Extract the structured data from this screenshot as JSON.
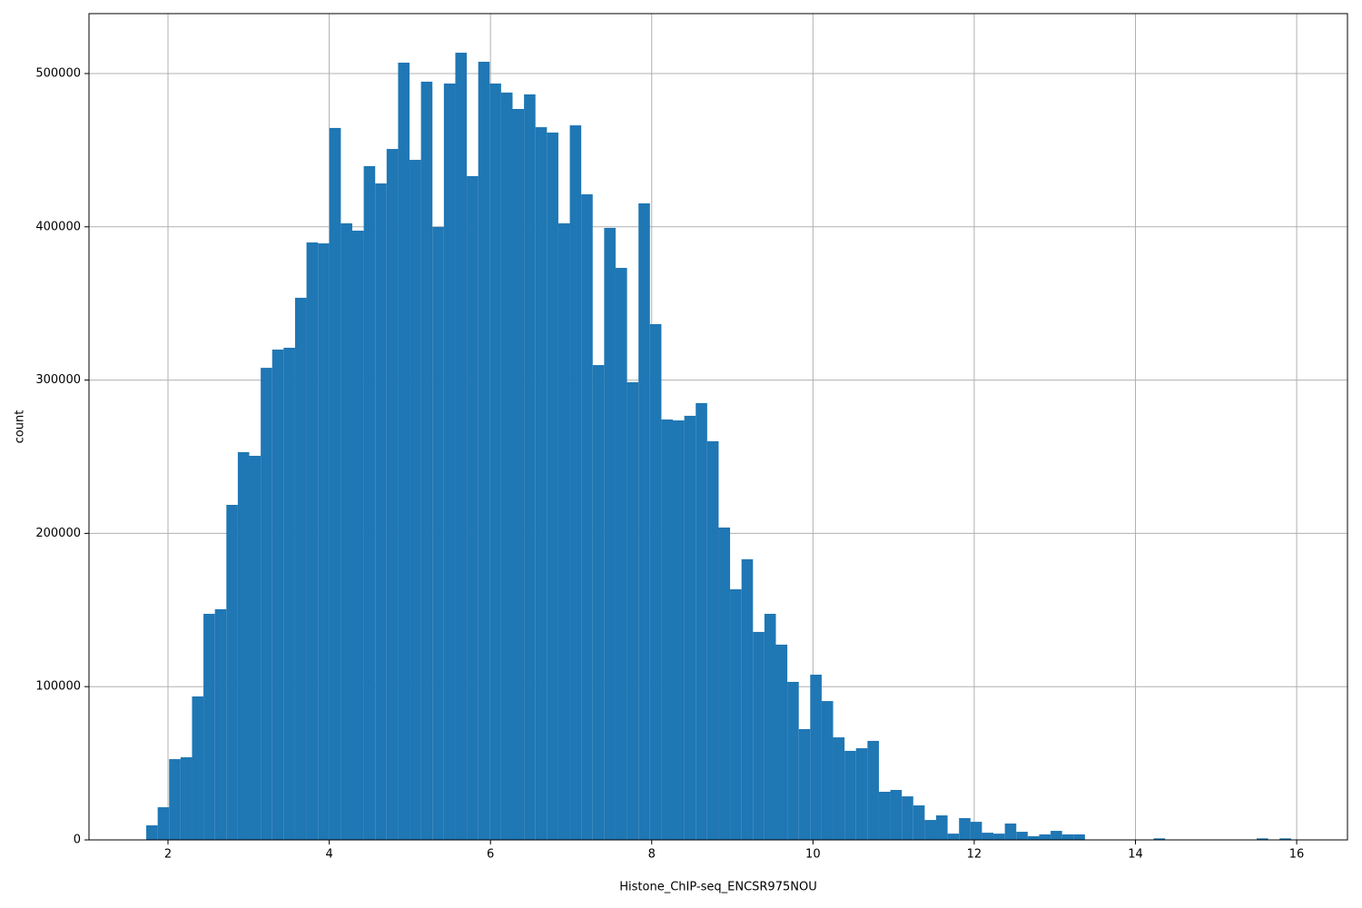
{
  "chart_data": {
    "type": "histogram",
    "xlabel": "Histone_ChIP-seq_ENCSR975NOU",
    "ylabel": "count",
    "color": "#1f77b4",
    "grid": true,
    "xlim": [
      1.02,
      16.63
    ],
    "ylim": [
      0,
      539100
    ],
    "xticks": [
      2,
      4,
      6,
      8,
      10,
      12,
      14,
      16
    ],
    "yticks": [
      0,
      100000,
      200000,
      300000,
      400000,
      500000
    ],
    "bins": [
      1.73,
      1.872,
      2.014,
      2.156,
      2.298,
      2.44,
      2.582,
      2.724,
      2.866,
      3.008,
      3.15,
      3.292,
      3.434,
      3.576,
      3.718,
      3.86,
      4.002,
      4.144,
      4.286,
      4.428,
      4.57,
      4.712,
      4.854,
      4.996,
      5.138,
      5.28,
      5.422,
      5.564,
      5.706,
      5.848,
      5.99,
      6.132,
      6.274,
      6.416,
      6.558,
      6.7,
      6.842,
      6.984,
      7.126,
      7.268,
      7.41,
      7.552,
      7.694,
      7.836,
      7.978,
      8.12,
      8.262,
      8.404,
      8.546,
      8.688,
      8.83,
      8.972,
      9.114,
      9.256,
      9.398,
      9.54,
      9.682,
      9.824,
      9.966,
      10.108,
      10.25,
      10.392,
      10.534,
      10.676,
      10.818,
      10.96,
      11.102,
      11.244,
      11.386,
      11.528,
      11.67,
      11.812,
      11.954,
      12.096,
      12.238,
      12.38,
      12.522,
      12.664,
      12.806,
      12.948,
      13.09,
      13.232,
      13.374,
      13.516,
      13.658,
      13.8,
      13.942,
      14.084,
      14.226,
      14.368,
      14.51,
      14.652,
      14.794,
      14.936,
      15.078,
      15.22,
      15.362,
      15.504,
      15.646,
      15.788,
      15.93
    ],
    "values": [
      9500,
      21300,
      52700,
      53900,
      93600,
      147500,
      150500,
      218600,
      253000,
      250600,
      308000,
      319900,
      321100,
      353700,
      389800,
      389200,
      464500,
      402300,
      397500,
      439600,
      428300,
      450800,
      507100,
      443700,
      494700,
      399900,
      493500,
      513600,
      433100,
      507700,
      493500,
      487600,
      476900,
      486400,
      465000,
      461500,
      402300,
      466200,
      421200,
      309800,
      399300,
      373200,
      298600,
      415300,
      336500,
      274300,
      273700,
      276700,
      285000,
      260100,
      203800,
      163500,
      183100,
      135700,
      147500,
      127400,
      103100,
      72300,
      107800,
      90600,
      66900,
      58100,
      59800,
      64600,
      31400,
      32600,
      28400,
      22500,
      13000,
      16000,
      4100,
      14200,
      11800,
      4700,
      4100,
      10700,
      5300,
      2400,
      3600,
      5900,
      3600,
      3600,
      0,
      0,
      0,
      0,
      0,
      0,
      1000,
      0,
      0,
      0,
      0,
      0,
      0,
      0,
      0,
      1000,
      0,
      1000
    ]
  }
}
